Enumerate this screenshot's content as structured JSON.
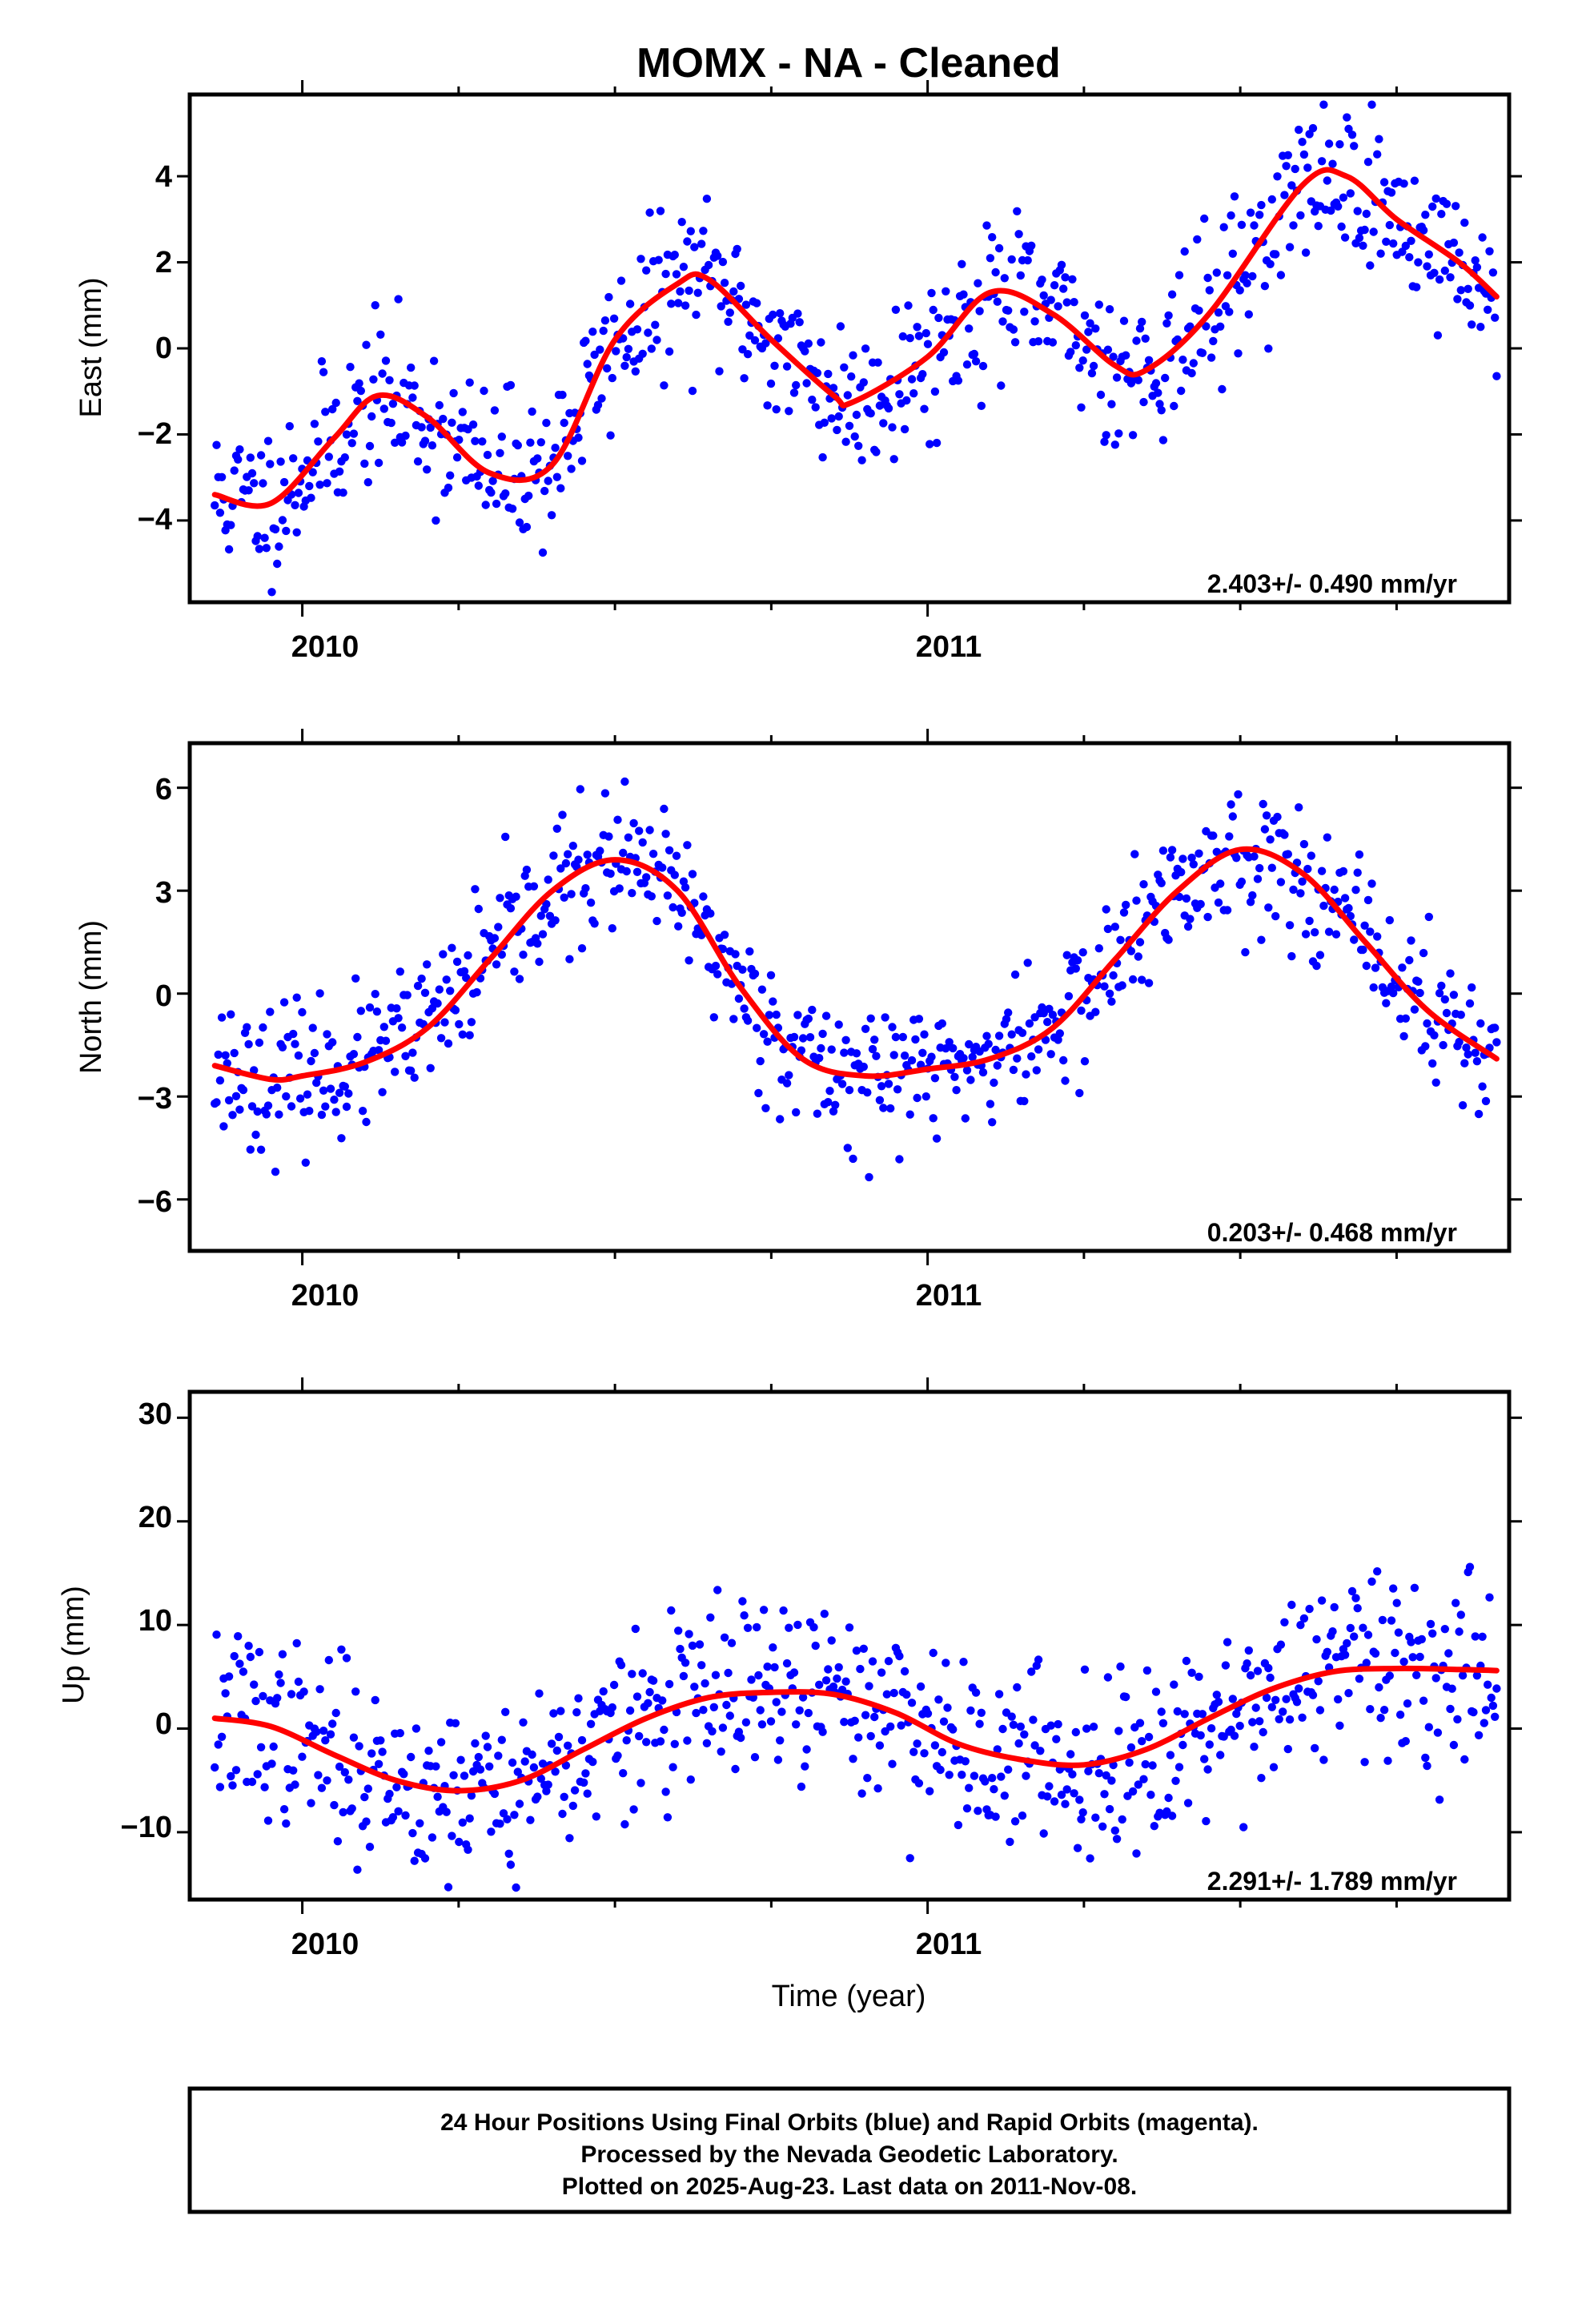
{
  "title": "MOMX  - NA - Cleaned",
  "x_axis_label": "Time (year)",
  "footer": {
    "line1": "24 Hour Positions Using Final Orbits (blue) and Rapid Orbits (magenta).",
    "line2": "Processed by the Nevada Geodetic Laboratory.",
    "line3": "Plotted on 2025-Aug-23. Last data on 2011-Nov-08."
  },
  "colors": {
    "final_orbits_points": "#0000ff",
    "rapid_orbits_points": "#ff00ff",
    "model_curve": "#ff0000",
    "frame": "#000000"
  },
  "chart_data": [
    {
      "type": "scatter",
      "name": "east",
      "xlabel": "",
      "ylabel": "East (mm)",
      "xlim": [
        2009.82,
        2011.93
      ],
      "ylim": [
        -5.9,
        5.9
      ],
      "x_ticks": [
        2010,
        2011
      ],
      "x_tick_labels": [
        "2010",
        "2011"
      ],
      "y_ticks": [
        -4,
        -2,
        0,
        2,
        4
      ],
      "y_tick_labels": [
        "−4",
        "−2",
        "0",
        "2",
        "4"
      ],
      "grid": false,
      "rate_label": "2.403+/- 0.490 mm/yr",
      "series": [
        {
          "name": "final orbits",
          "points": "random scatter around model curve",
          "noise_mm": 0.9
        }
      ],
      "model_curve": {
        "x": [
          2009.86,
          2009.95,
          2010.05,
          2010.12,
          2010.2,
          2010.3,
          2010.4,
          2010.5,
          2010.6,
          2010.65,
          2010.75,
          2010.85,
          2010.88,
          2011.0,
          2011.1,
          2011.2,
          2011.3,
          2011.35,
          2011.45,
          2011.6,
          2011.67,
          2011.75,
          2011.85,
          2011.91
        ],
        "y": [
          -3.4,
          -3.6,
          -2.1,
          -1.1,
          -1.6,
          -2.9,
          -2.7,
          0.2,
          1.5,
          1.6,
          0.2,
          -1.1,
          -1.25,
          -0.2,
          1.3,
          0.8,
          -0.4,
          -0.5,
          0.8,
          3.8,
          4.0,
          3.0,
          2.0,
          1.2
        ]
      }
    },
    {
      "type": "scatter",
      "name": "north",
      "xlabel": "",
      "ylabel": "North (mm)",
      "xlim": [
        2009.82,
        2011.93
      ],
      "ylim": [
        -7.5,
        7.3
      ],
      "x_ticks": [
        2010,
        2011
      ],
      "x_tick_labels": [
        "2010",
        "2011"
      ],
      "y_ticks": [
        -6,
        -3,
        0,
        3,
        6
      ],
      "y_tick_labels": [
        "−6",
        "−3",
        "0",
        "3",
        "6"
      ],
      "grid": false,
      "rate_label": "0.203+/- 0.468 mm/yr",
      "series": [
        {
          "name": "final orbits",
          "points": "random scatter around model curve",
          "noise_mm": 1.0
        }
      ],
      "model_curve": {
        "x": [
          2009.86,
          2009.95,
          2010.0,
          2010.1,
          2010.2,
          2010.3,
          2010.4,
          2010.5,
          2010.6,
          2010.7,
          2010.8,
          2010.9,
          2011.0,
          2011.1,
          2011.2,
          2011.3,
          2011.4,
          2011.5,
          2011.6,
          2011.7,
          2011.8,
          2011.91
        ],
        "y": [
          -2.1,
          -2.5,
          -2.4,
          -2.0,
          -1.0,
          1.0,
          3.0,
          3.9,
          3.0,
          0.2,
          -1.9,
          -2.4,
          -2.2,
          -1.9,
          -1.0,
          1.0,
          3.0,
          4.2,
          3.5,
          1.5,
          -0.5,
          -1.9
        ]
      }
    },
    {
      "type": "scatter",
      "name": "up",
      "xlabel": "Time (year)",
      "ylabel": "Up (mm)",
      "xlim": [
        2009.82,
        2011.93
      ],
      "ylim": [
        -16.5,
        32.5
      ],
      "x_ticks": [
        2010,
        2011
      ],
      "x_tick_labels": [
        "2010",
        "2011"
      ],
      "y_ticks": [
        -10,
        0,
        10,
        20,
        30
      ],
      "y_tick_labels": [
        "−10",
        "0",
        "10",
        "20",
        "30"
      ],
      "grid": false,
      "rate_label": "2.291+/- 1.789 mm/yr",
      "series": [
        {
          "name": "final orbits",
          "points": "random scatter around model curve",
          "noise_mm": 4.3
        }
      ],
      "model_curve": {
        "x": [
          2009.86,
          2009.95,
          2010.05,
          2010.15,
          2010.25,
          2010.35,
          2010.45,
          2010.55,
          2010.65,
          2010.75,
          2010.85,
          2010.95,
          2011.05,
          2011.15,
          2011.25,
          2011.35,
          2011.45,
          2011.55,
          2011.65,
          2011.75,
          2011.85,
          2011.91
        ],
        "y": [
          1.0,
          0.2,
          -2.5,
          -5.0,
          -6.0,
          -5.0,
          -2.0,
          1.0,
          3.0,
          3.5,
          3.3,
          1.5,
          -1.5,
          -3.0,
          -3.5,
          -2.0,
          1.0,
          3.8,
          5.5,
          5.8,
          5.7,
          5.6
        ]
      }
    }
  ]
}
